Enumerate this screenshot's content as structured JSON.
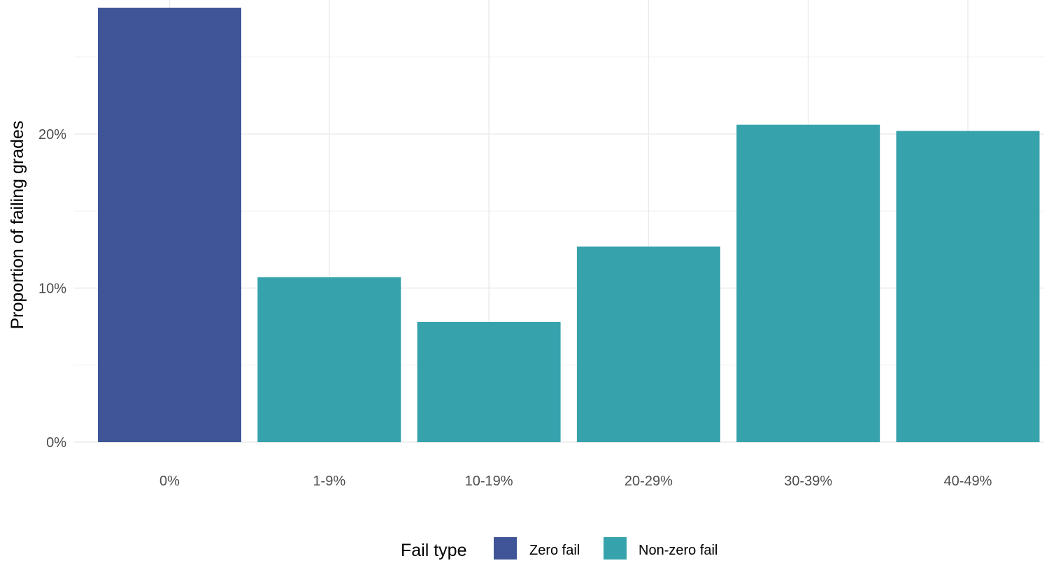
{
  "chart_data": {
    "type": "bar",
    "categories": [
      "0%",
      "1-9%",
      "10-19%",
      "20-29%",
      "30-39%",
      "40-49%"
    ],
    "values": [
      28.2,
      10.7,
      7.8,
      12.7,
      20.6,
      20.2
    ],
    "fail_type": [
      "Zero fail",
      "Non-zero fail",
      "Non-zero fail",
      "Non-zero fail",
      "Non-zero fail",
      "Non-zero fail"
    ],
    "title": "",
    "xlabel": "",
    "ylabel": "Proportion of failing grades",
    "ylim": [
      0,
      28.2
    ],
    "yticks": [
      0,
      10,
      20
    ],
    "ytick_labels": [
      "0%",
      "10%",
      "20%"
    ],
    "grid": true,
    "legend": {
      "title": "Fail type",
      "position": "bottom",
      "entries": [
        {
          "name": "Zero fail",
          "color": "#3F5597"
        },
        {
          "name": "Non-zero fail",
          "color": "#36A2AC"
        }
      ]
    },
    "colors": {
      "Zero fail": "#3F5597",
      "Non-zero fail": "#36A2AC",
      "grid": "#EBEBEB",
      "tick_text": "#4D4D4D"
    }
  }
}
